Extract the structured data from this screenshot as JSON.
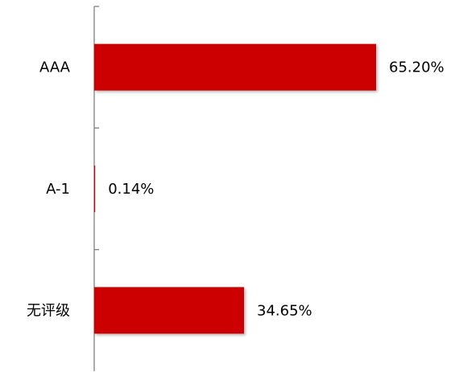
{
  "chart_data": {
    "type": "bar",
    "orientation": "horizontal",
    "categories": [
      "AAA",
      "A-1",
      "无评级"
    ],
    "values": [
      65.2,
      0.14,
      34.65
    ],
    "data_labels": [
      "65.20%",
      "0.14%",
      "34.65%"
    ],
    "unit": "%",
    "title": "",
    "xlabel": "",
    "ylabel": "",
    "xlim": [
      0,
      65.2
    ],
    "grid": false,
    "legend": "none",
    "bar_color": "#cc0000"
  }
}
